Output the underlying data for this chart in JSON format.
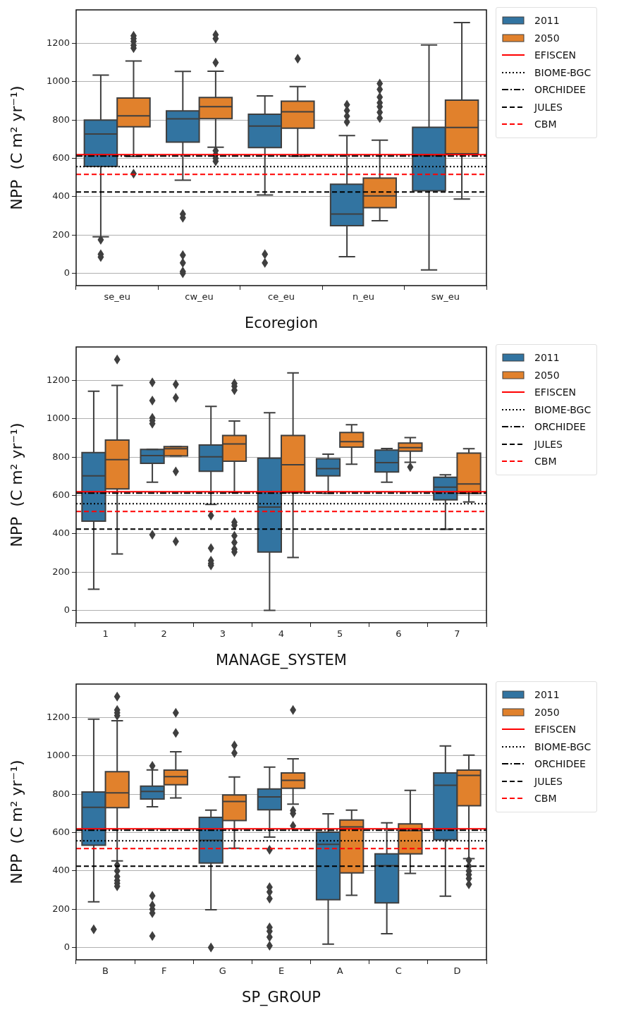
{
  "chart_data": [
    {
      "type": "box",
      "xlabel": "Ecoregion",
      "ylabel": "NPP  (C m² yr⁻¹)",
      "categories": [
        "se_eu",
        "cw_eu",
        "ce_eu",
        "n_eu",
        "sw_eu"
      ],
      "series": [
        {
          "name": "2011",
          "color": "#3274a1",
          "boxes": [
            {
              "low": 191,
              "q1": 558,
              "median": 727,
              "q3": 800,
              "high": 1035,
              "outliers": [
                175,
                100,
                85
              ]
            },
            {
              "low": 486,
              "q1": 685,
              "median": 806,
              "q3": 848,
              "high": 1054,
              "outliers": [
                310,
                290,
                95,
                55,
                10,
                0
              ]
            },
            {
              "low": 409,
              "q1": 656,
              "median": 769,
              "q3": 830,
              "high": 926,
              "outliers": [
                100,
                55
              ]
            },
            {
              "low": 87,
              "q1": 249,
              "median": 310,
              "q3": 465,
              "high": 719,
              "outliers": [
                880,
                850,
                820,
                790
              ]
            },
            {
              "low": 18,
              "q1": 431,
              "median": 615,
              "q3": 762,
              "high": 1192
            }
          ]
        },
        {
          "name": "2050",
          "color": "#e1812c",
          "boxes": [
            {
              "low": 610,
              "q1": 765,
              "median": 822,
              "q3": 915,
              "high": 1108,
              "outliers": [
                1240,
                1225,
                1210,
                1190,
                1175,
                520
              ]
            },
            {
              "low": 658,
              "q1": 807,
              "median": 870,
              "q3": 918,
              "high": 1055,
              "outliers": [
                1245,
                1225,
                1100,
                640,
                620,
                600,
                585
              ]
            },
            {
              "low": 611,
              "q1": 758,
              "median": 843,
              "q3": 898,
              "high": 975,
              "outliers": [
                1120
              ]
            },
            {
              "low": 275,
              "q1": 343,
              "median": 404,
              "q3": 497,
              "high": 695,
              "outliers": [
                990,
                960,
                920,
                890,
                870,
                840,
                810
              ]
            },
            {
              "low": 388,
              "q1": 624,
              "median": 761,
              "q3": 904,
              "high": 1309
            }
          ]
        }
      ],
      "ylim": [
        -64,
        1375
      ],
      "yticks": [
        0,
        200,
        400,
        600,
        800,
        1000,
        1200
      ],
      "grid": "y",
      "legend": "top right",
      "ref_lines": [
        {
          "axis": "y",
          "value": 620,
          "label": "EFISCEN",
          "color": "#ff0000",
          "line_style": "solid"
        },
        {
          "axis": "y",
          "value": 557,
          "label": "BIOME-BGC",
          "color": "#000000",
          "line_style": "dotted"
        },
        {
          "axis": "y",
          "value": 612,
          "label": "ORCHIDEE",
          "color": "#000000",
          "line_style": "dashdot"
        },
        {
          "axis": "y",
          "value": 425,
          "label": "JULES",
          "color": "#000000",
          "line_style": "dashed"
        },
        {
          "axis": "y",
          "value": 517,
          "label": "CBM",
          "color": "#ff0000",
          "line_style": "dashed"
        }
      ]
    },
    {
      "type": "box",
      "xlabel": "MANAGE_SYSTEM",
      "ylabel": "NPP  (C m² yr⁻¹)",
      "categories": [
        "1",
        "2",
        "3",
        "4",
        "5",
        "6",
        "7"
      ],
      "series": [
        {
          "name": "2011",
          "color": "#3274a1",
          "boxes": [
            {
              "low": 111,
              "q1": 466,
              "median": 702,
              "q3": 824,
              "high": 1144
            },
            {
              "low": 669,
              "q1": 768,
              "median": 808,
              "q3": 840,
              "high": 840,
              "outliers": [
                1190,
                1095,
                1005,
                990,
                975,
                395
              ]
            },
            {
              "low": 553,
              "q1": 726,
              "median": 802,
              "q3": 863,
              "high": 1065,
              "outliers": [
                495,
                325,
                260,
                245,
                235
              ]
            },
            {
              "low": 0,
              "q1": 305,
              "median": 540,
              "q3": 794,
              "high": 1032
            },
            {
              "low": 611,
              "q1": 702,
              "median": 740,
              "q3": 792,
              "high": 816
            },
            {
              "low": 669,
              "q1": 723,
              "median": 771,
              "q3": 837,
              "high": 845
            },
            {
              "low": 424,
              "q1": 577,
              "median": 644,
              "q3": 695,
              "high": 708
            }
          ]
        },
        {
          "name": "2050",
          "color": "#e1812c",
          "boxes": [
            {
              "low": 295,
              "q1": 634,
              "median": 787,
              "q3": 889,
              "high": 1174,
              "outliers": [
                1310
              ]
            },
            {
              "low": 806,
              "q1": 806,
              "median": 844,
              "q3": 855,
              "high": 855,
              "outliers": [
                1180,
                1110,
                725,
                360
              ]
            },
            {
              "low": 616,
              "q1": 779,
              "median": 869,
              "q3": 913,
              "high": 989,
              "outliers": [
                1185,
                1170,
                1150,
                460,
                445,
                390,
                355,
                320,
                305
              ]
            },
            {
              "low": 276,
              "q1": 615,
              "median": 760,
              "q3": 913,
              "high": 1240
            },
            {
              "low": 763,
              "q1": 852,
              "median": 881,
              "q3": 929,
              "high": 969
            },
            {
              "low": 773,
              "q1": 831,
              "median": 850,
              "q3": 874,
              "high": 902,
              "outliers": [
                748
              ]
            },
            {
              "low": 566,
              "q1": 610,
              "median": 660,
              "q3": 821,
              "high": 844
            }
          ]
        }
      ],
      "ylim": [
        -64,
        1375
      ],
      "yticks": [
        0,
        200,
        400,
        600,
        800,
        1000,
        1200
      ],
      "grid": "y",
      "legend": "top right",
      "ref_lines": [
        {
          "axis": "y",
          "value": 620,
          "label": "EFISCEN",
          "color": "#ff0000",
          "line_style": "solid"
        },
        {
          "axis": "y",
          "value": 557,
          "label": "BIOME-BGC",
          "color": "#000000",
          "line_style": "dotted"
        },
        {
          "axis": "y",
          "value": 612,
          "label": "ORCHIDEE",
          "color": "#000000",
          "line_style": "dashdot"
        },
        {
          "axis": "y",
          "value": 425,
          "label": "JULES",
          "color": "#000000",
          "line_style": "dashed"
        },
        {
          "axis": "y",
          "value": 517,
          "label": "CBM",
          "color": "#ff0000",
          "line_style": "dashed"
        }
      ]
    },
    {
      "type": "box",
      "xlabel": "SP_GROUP",
      "ylabel": "NPP  (C m² yr⁻¹)",
      "categories": [
        "B",
        "F",
        "G",
        "E",
        "A",
        "C",
        "D"
      ],
      "series": [
        {
          "name": "2011",
          "color": "#3274a1",
          "boxes": [
            {
              "low": 239,
              "q1": 534,
              "median": 732,
              "q3": 812,
              "high": 1192,
              "outliers": [
                95
              ]
            },
            {
              "low": 735,
              "q1": 775,
              "median": 815,
              "q3": 842,
              "high": 927,
              "outliers": [
                948,
                270,
                220,
                200,
                180,
                60
              ]
            },
            {
              "low": 197,
              "q1": 441,
              "median": 560,
              "q3": 679,
              "high": 717,
              "outliers": [
                0
              ]
            },
            {
              "low": 576,
              "q1": 719,
              "median": 786,
              "q3": 828,
              "high": 942,
              "outliers": [
                510,
                315,
                290,
                255,
                105,
                85,
                55,
                10
              ]
            },
            {
              "low": 18,
              "q1": 250,
              "median": 539,
              "q3": 602,
              "high": 698
            },
            {
              "low": 72,
              "q1": 233,
              "median": 427,
              "q3": 489,
              "high": 651
            },
            {
              "low": 268,
              "q1": 563,
              "median": 847,
              "q3": 911,
              "high": 1052
            }
          ]
        },
        {
          "name": "2050",
          "color": "#e1812c",
          "boxes": [
            {
              "low": 452,
              "q1": 730,
              "median": 807,
              "q3": 918,
              "high": 1184,
              "outliers": [
                1310,
                1240,
                1225,
                1210,
                430,
                400,
                370,
                350,
                335,
                320
              ]
            },
            {
              "low": 781,
              "q1": 850,
              "median": 892,
              "q3": 926,
              "high": 1022,
              "outliers": [
                1225,
                1120
              ]
            },
            {
              "low": 518,
              "q1": 663,
              "median": 762,
              "q3": 796,
              "high": 890,
              "outliers": [
                1055,
                1015
              ]
            },
            {
              "low": 748,
              "q1": 831,
              "median": 873,
              "q3": 911,
              "high": 985,
              "outliers": [
                1240,
                715,
                700,
                635
              ]
            },
            {
              "low": 273,
              "q1": 390,
              "median": 630,
              "q3": 666,
              "high": 717
            },
            {
              "low": 387,
              "q1": 489,
              "median": 610,
              "q3": 645,
              "high": 820
            },
            {
              "low": 464,
              "q1": 740,
              "median": 898,
              "q3": 926,
              "high": 1004,
              "outliers": [
                455,
                425,
                400,
                380,
                360,
                330
              ]
            }
          ]
        }
      ],
      "ylim": [
        -64,
        1375
      ],
      "yticks": [
        0,
        200,
        400,
        600,
        800,
        1000,
        1200
      ],
      "grid": "y",
      "legend": "top right",
      "ref_lines": [
        {
          "axis": "y",
          "value": 620,
          "label": "EFISCEN",
          "color": "#ff0000",
          "line_style": "solid"
        },
        {
          "axis": "y",
          "value": 557,
          "label": "BIOME-BGC",
          "color": "#000000",
          "line_style": "dotted"
        },
        {
          "axis": "y",
          "value": 612,
          "label": "ORCHIDEE",
          "color": "#000000",
          "line_style": "dashdot"
        },
        {
          "axis": "y",
          "value": 425,
          "label": "JULES",
          "color": "#000000",
          "line_style": "dashed"
        },
        {
          "axis": "y",
          "value": 517,
          "label": "CBM",
          "color": "#ff0000",
          "line_style": "dashed"
        }
      ]
    }
  ]
}
